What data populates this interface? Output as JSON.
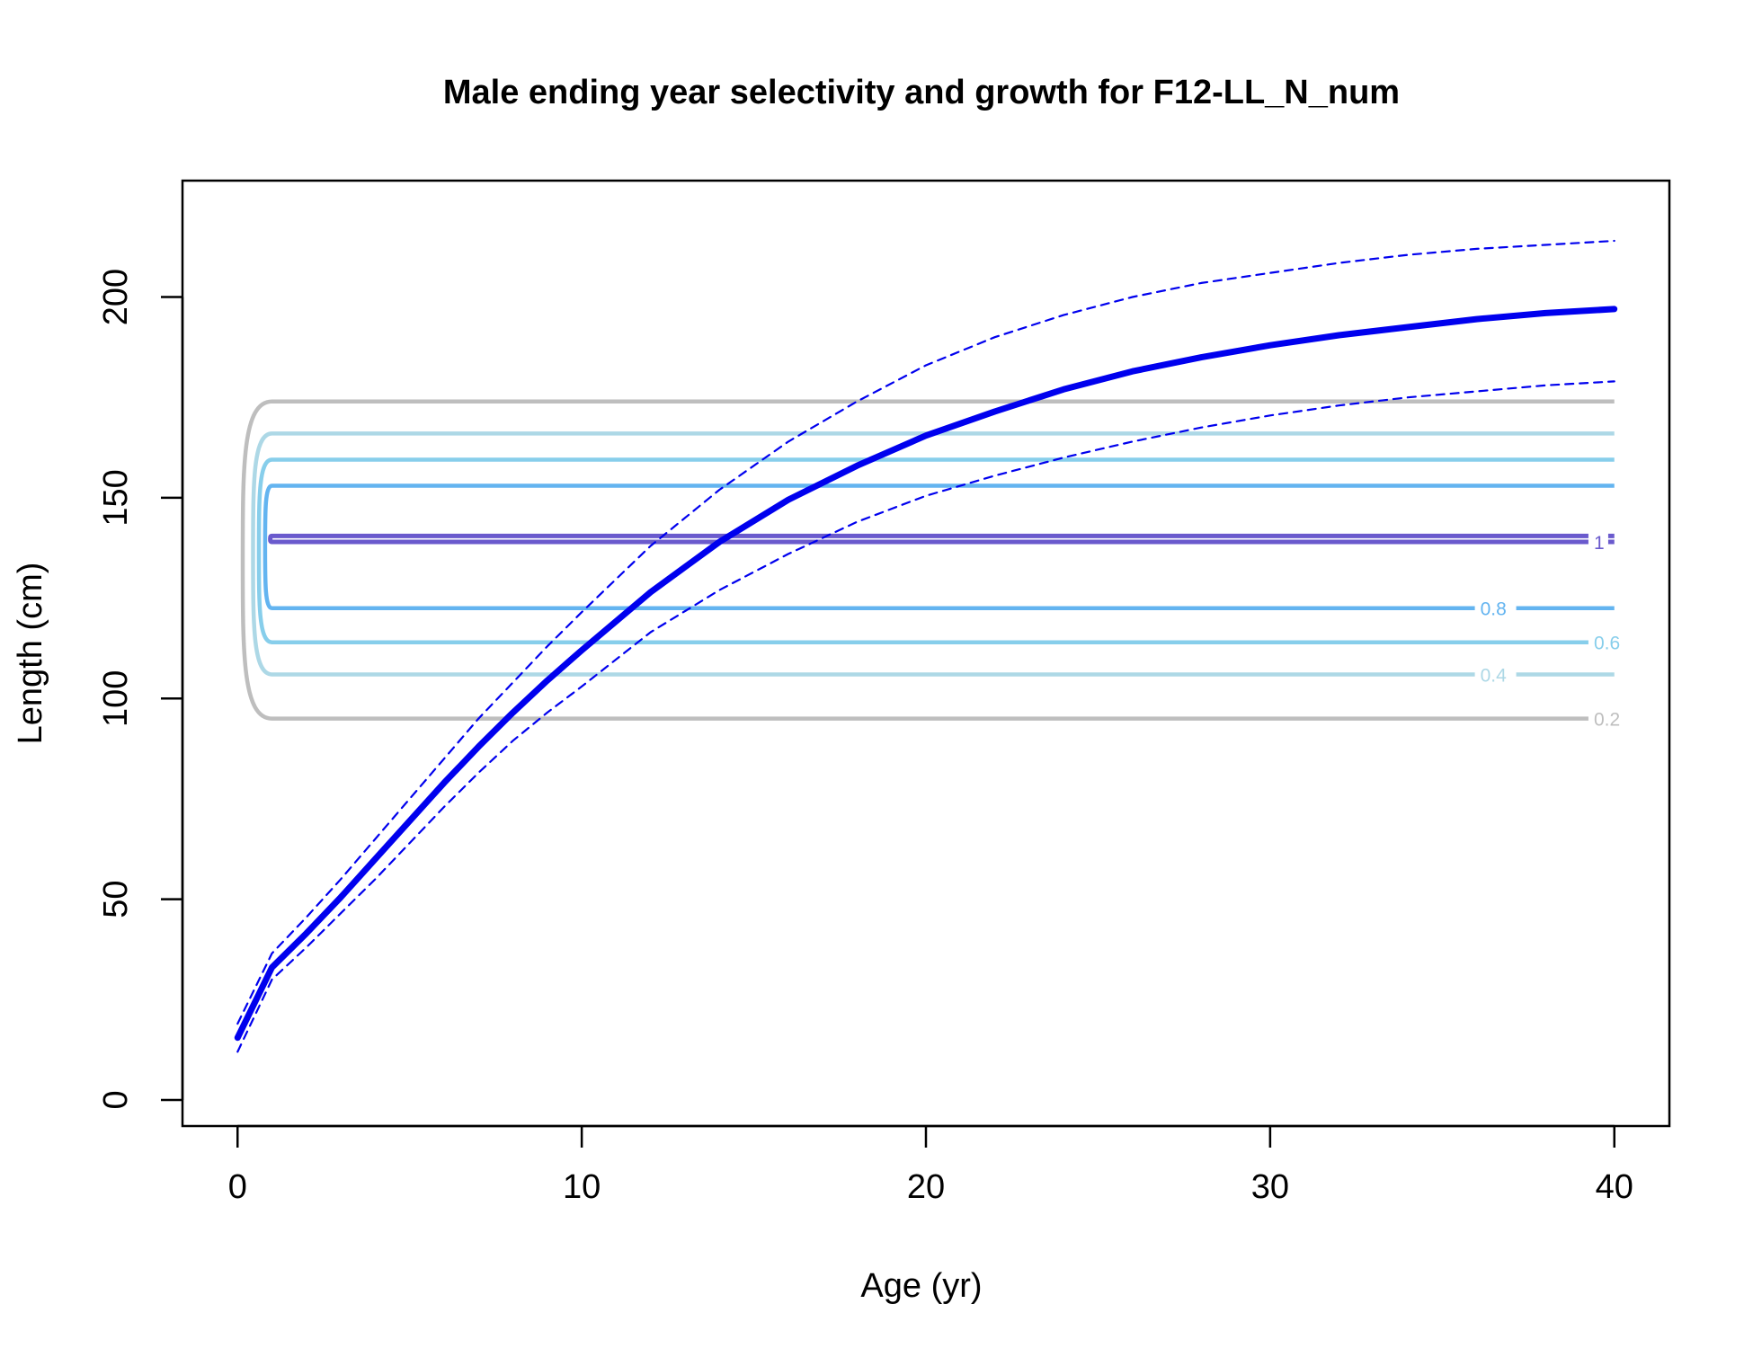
{
  "chart_data": {
    "type": "line",
    "title": "Male ending year selectivity and growth for F12-LL_N_num",
    "xlabel": "Age (yr)",
    "ylabel": "Length (cm)",
    "xlim": [
      -1.6,
      41.6
    ],
    "ylim": [
      -6.5,
      229
    ],
    "x_ticks": [
      "0",
      "10",
      "20",
      "30",
      "40"
    ],
    "y_ticks": [
      "0",
      "50",
      "100",
      "150",
      "200"
    ],
    "grid": false,
    "series": [
      {
        "role": "mean",
        "color": "#0000ee",
        "x": [
          0,
          1,
          2,
          3,
          4,
          5,
          6,
          7,
          8,
          9,
          10,
          12,
          14,
          16,
          18,
          20,
          22,
          24,
          26,
          28,
          30,
          32,
          34,
          36,
          38,
          40
        ],
        "y": [
          15.5,
          33,
          41.5,
          50.5,
          60,
          69.5,
          79,
          88,
          96.5,
          104.5,
          112,
          126.5,
          139,
          149.5,
          158,
          165.5,
          171.5,
          177,
          181.5,
          185,
          188,
          190.5,
          192.5,
          194.5,
          196,
          197
        ]
      },
      {
        "role": "upper",
        "color": "#0000ee",
        "x": [
          0,
          1,
          2,
          3,
          4,
          5,
          6,
          7,
          8,
          9,
          10,
          12,
          14,
          16,
          18,
          20,
          22,
          24,
          26,
          28,
          30,
          32,
          34,
          36,
          38,
          40
        ],
        "y": [
          19,
          36.5,
          45.5,
          55,
          65,
          75,
          85,
          95,
          104,
          113,
          121.5,
          138,
          152,
          164,
          174,
          183,
          190,
          195.5,
          200,
          203.5,
          206,
          208.5,
          210.5,
          212,
          213,
          214
        ]
      },
      {
        "role": "lower",
        "color": "#0000ee",
        "x": [
          0,
          1,
          2,
          3,
          4,
          5,
          6,
          7,
          8,
          9,
          10,
          12,
          14,
          16,
          18,
          20,
          22,
          24,
          26,
          28,
          30,
          32,
          34,
          36,
          38,
          40
        ],
        "y": [
          12,
          30,
          38,
          46.5,
          55,
          64,
          73,
          81.5,
          89.5,
          96.5,
          103,
          116.5,
          127,
          136,
          144,
          150.5,
          155.5,
          160,
          164,
          167.5,
          170.5,
          173,
          175,
          176.5,
          178,
          179
        ]
      }
    ],
    "contours": [
      {
        "level": "0.2",
        "color": "#bebebe",
        "upper": 174,
        "lower": 95,
        "bulge": 0.85
      },
      {
        "level": "0.4",
        "color": "#add8e6",
        "upper": 166,
        "lower": 106,
        "bulge": 0.55
      },
      {
        "level": "0.6",
        "color": "#87ceeb",
        "upper": 159.5,
        "lower": 114,
        "bulge": 0.38
      },
      {
        "level": "0.8",
        "color": "#63b4f0",
        "upper": 153,
        "lower": 122.5,
        "bulge": 0.2
      },
      {
        "level": "1",
        "color": "#6a5acd",
        "upper": 140.5,
        "lower": 139,
        "bulge": 0.05
      }
    ]
  }
}
